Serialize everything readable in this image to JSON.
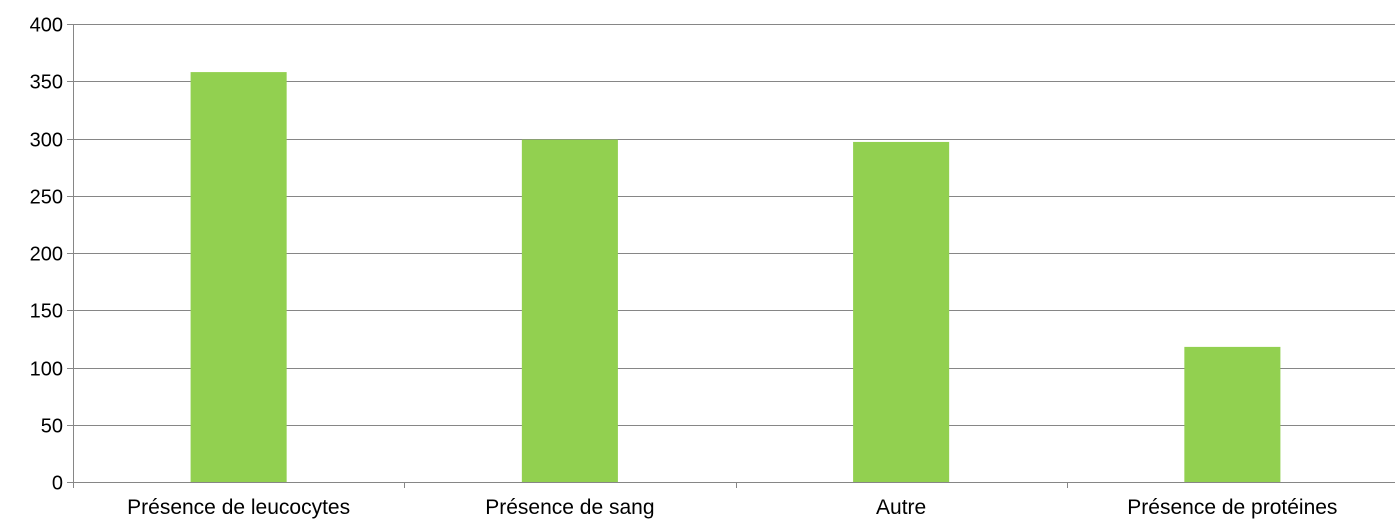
{
  "chart_data": {
    "type": "bar",
    "title": "",
    "xlabel": "",
    "ylabel": "",
    "categories": [
      "Présence de leucocytes",
      "Présence de sang",
      "Autre",
      "Présence de protéines"
    ],
    "values": [
      358,
      299,
      297,
      118
    ],
    "ylim": [
      0,
      400
    ],
    "yticks": [
      "0",
      "50",
      "100",
      "150",
      "200",
      "250",
      "300",
      "350",
      "400"
    ],
    "grid": true,
    "legend": "none",
    "bar_color": "#92d050",
    "grid_color": "#868686"
  }
}
